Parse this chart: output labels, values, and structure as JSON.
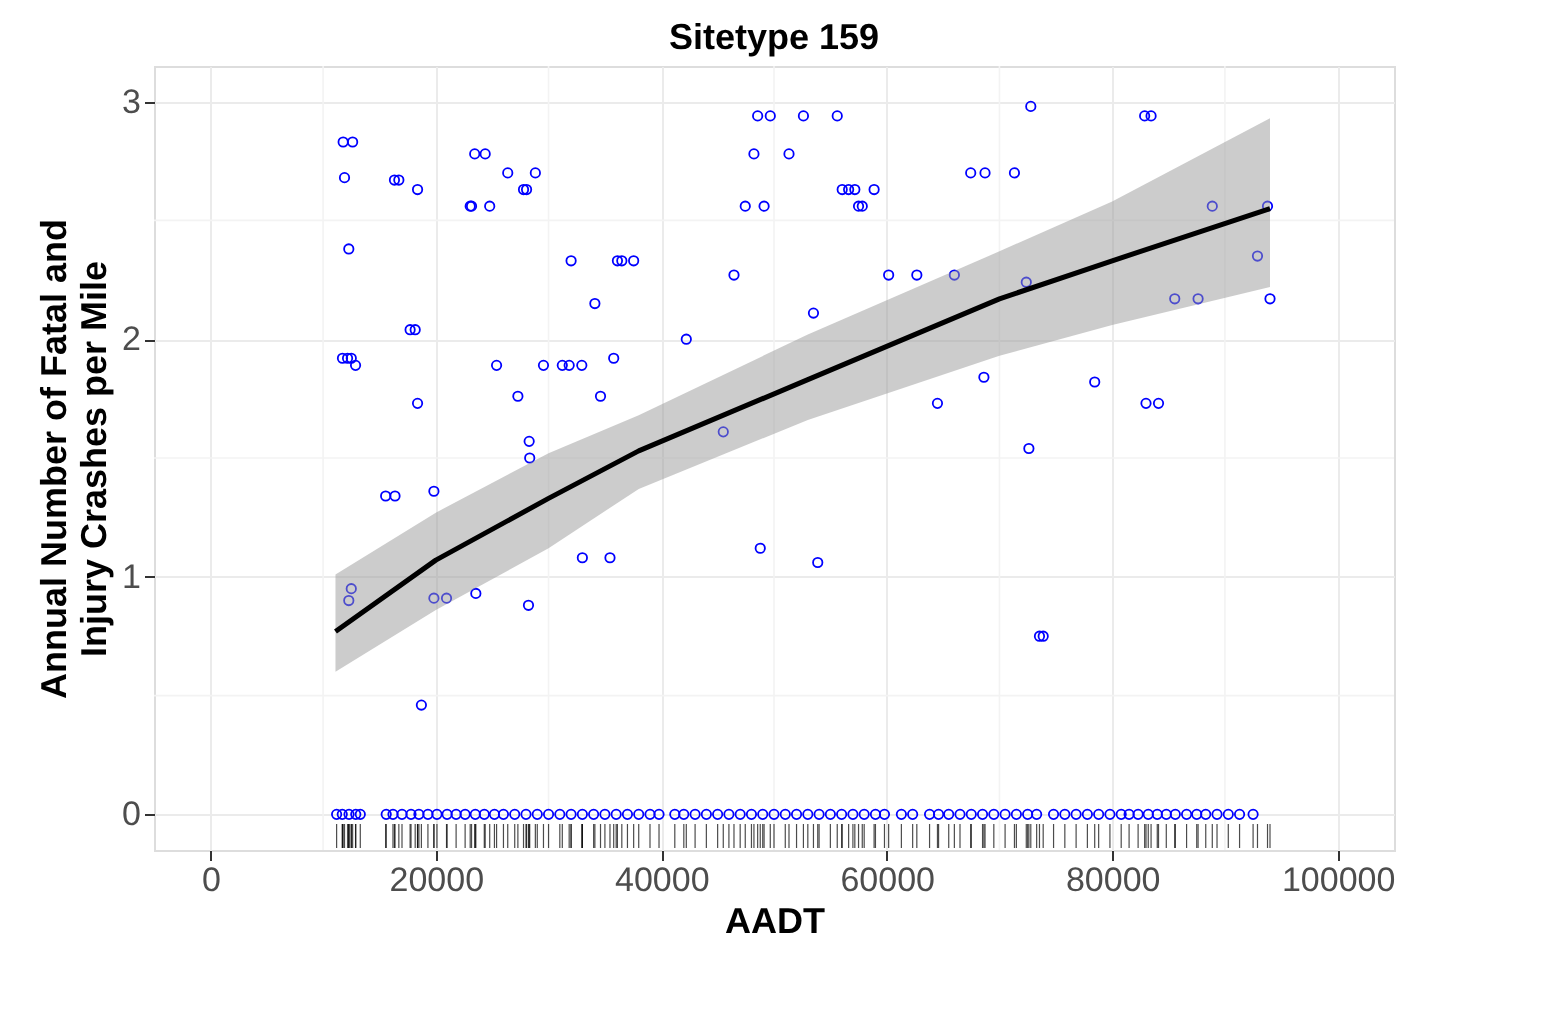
{
  "chart_data": {
    "type": "scatter",
    "title": "Sitetype 159",
    "xlabel": "AADT",
    "ylabel": "Annual Number of Fatal and\nInjury Crashes per Mile",
    "xlim": [
      -5000,
      105000
    ],
    "xticks": [
      0,
      20000,
      40000,
      60000,
      80000,
      100000
    ],
    "ylim": [
      -0.15,
      3.15
    ],
    "yticks": [
      0,
      1,
      2,
      3
    ],
    "grid": true,
    "marker": "circle",
    "series": [
      {
        "color": "#0000ff",
        "x": [
          11780,
          12620,
          11900,
          16330,
          16720,
          18380,
          23450,
          24380,
          26380,
          28830,
          27780,
          28050,
          23050,
          23170,
          24780,
          12280,
          32000,
          36110,
          36500,
          37550,
          34110,
          17720,
          18170,
          11720,
          12170,
          12500,
          12880,
          25390,
          29550,
          31220,
          31830,
          32950,
          35780,
          27280,
          18380,
          34610,
          28280,
          28330,
          15550,
          16380,
          19830,
          33000,
          35450,
          12500,
          12280,
          19830,
          20950,
          23550,
          28220,
          18720,
          48550,
          49670,
          52610,
          55610,
          48220,
          51330,
          47450,
          49120,
          56050,
          56620,
          57170,
          58880,
          57500,
          57830,
          67450,
          68720,
          46450,
          60170,
          62670,
          66000,
          53500,
          42220,
          68620,
          64500,
          45500,
          48780,
          53880,
          72780,
          82880,
          83450,
          71330,
          88880,
          93780,
          92890,
          72380,
          85550,
          87620,
          94000,
          78450,
          83000,
          84110,
          72610,
          73550,
          73880
        ],
        "values": [
          2.83,
          2.83,
          2.68,
          2.67,
          2.67,
          2.63,
          2.78,
          2.78,
          2.7,
          2.7,
          2.63,
          2.63,
          2.56,
          2.56,
          2.56,
          2.38,
          2.33,
          2.33,
          2.33,
          2.33,
          2.15,
          2.04,
          2.04,
          1.92,
          1.92,
          1.92,
          1.89,
          1.89,
          1.89,
          1.89,
          1.89,
          1.89,
          1.92,
          1.76,
          1.73,
          1.76,
          1.57,
          1.5,
          1.34,
          1.34,
          1.36,
          1.08,
          1.08,
          0.95,
          0.9,
          0.91,
          0.91,
          0.93,
          0.88,
          0.46,
          2.94,
          2.94,
          2.94,
          2.94,
          2.78,
          2.78,
          2.56,
          2.56,
          2.63,
          2.63,
          2.63,
          2.63,
          2.56,
          2.56,
          2.7,
          2.7,
          2.27,
          2.27,
          2.27,
          2.27,
          2.11,
          2.0,
          1.84,
          1.73,
          1.61,
          1.12,
          1.06,
          2.98,
          2.94,
          2.94,
          2.7,
          2.56,
          2.56,
          2.35,
          2.24,
          2.17,
          2.17,
          2.17,
          1.82,
          1.73,
          1.73,
          1.54,
          0.75,
          0.75
        ]
      },
      {
        "color": "#0000ff",
        "x": [
          11200,
          11700,
          12300,
          12900,
          13300,
          15600,
          16200,
          17000,
          17800,
          18500,
          19300,
          20100,
          21000,
          21800,
          22600,
          23500,
          24300,
          25200,
          26000,
          27000,
          28000,
          29000,
          30000,
          31000,
          32000,
          33000,
          34000,
          35000,
          36000,
          37000,
          38000,
          39000,
          39800,
          41200,
          42000,
          43000,
          44000,
          45000,
          46000,
          47000,
          48000,
          49000,
          50000,
          51000,
          52000,
          53000,
          54000,
          55000,
          56000,
          57000,
          58000,
          59000,
          59800,
          61300,
          62300,
          63800,
          64600,
          65500,
          66500,
          67500,
          68500,
          69500,
          70500,
          71500,
          72500,
          73300,
          74800,
          75800,
          76800,
          77800,
          78800,
          79800,
          80800,
          81500,
          82300,
          83200,
          84000,
          84800,
          85600,
          86600,
          87500,
          88300,
          89300,
          90300,
          91300,
          92500
        ],
        "values": [
          0,
          0,
          0,
          0,
          0,
          0,
          0,
          0,
          0,
          0,
          0,
          0,
          0,
          0,
          0,
          0,
          0,
          0,
          0,
          0,
          0,
          0,
          0,
          0,
          0,
          0,
          0,
          0,
          0,
          0,
          0,
          0,
          0,
          0,
          0,
          0,
          0,
          0,
          0,
          0,
          0,
          0,
          0,
          0,
          0,
          0,
          0,
          0,
          0,
          0,
          0,
          0,
          0,
          0,
          0,
          0,
          0,
          0,
          0,
          0,
          0,
          0,
          0,
          0,
          0,
          0,
          0,
          0,
          0,
          0,
          0,
          0,
          0,
          0,
          0,
          0,
          0,
          0,
          0,
          0,
          0,
          0,
          0,
          0,
          0,
          0
        ]
      },
      {
        "type": "line",
        "marker": "none",
        "color": "#000000",
        "x": [
          11100,
          20000,
          30000,
          38000,
          53000,
          70000,
          80000,
          94000
        ],
        "values": [
          0.77,
          1.07,
          1.33,
          1.53,
          1.83,
          2.17,
          2.33,
          2.55
        ],
        "lower": [
          0.6,
          0.86,
          1.12,
          1.37,
          1.66,
          1.93,
          2.06,
          2.22
        ],
        "upper": [
          1.01,
          1.27,
          1.52,
          1.68,
          2.02,
          2.37,
          2.58,
          2.93
        ]
      }
    ]
  }
}
